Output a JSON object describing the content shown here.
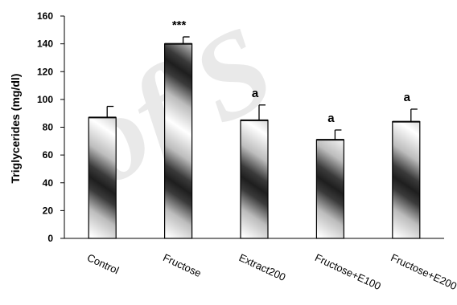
{
  "chart_data": {
    "type": "bar",
    "title": "",
    "xlabel": "",
    "ylabel": "Triglycerides (mg/dl)",
    "ylim": [
      0,
      160
    ],
    "yticks": [
      0,
      20,
      40,
      60,
      80,
      100,
      120,
      140,
      160
    ],
    "categories": [
      "Control",
      "Fructose",
      "Extract200",
      "Fructose+E100",
      "Fructose+E200"
    ],
    "values": [
      87,
      140,
      85,
      71,
      84
    ],
    "errors": [
      8,
      5,
      11,
      7,
      9
    ],
    "annotations": [
      "",
      "***",
      "a",
      "a",
      "a"
    ],
    "grid": false,
    "legend": "none",
    "bar_fill": "diagonal gradient bands, dark gray to white",
    "bar_color_dark": "#2a2a2a",
    "bar_color_light": "#ffffff"
  },
  "watermark": {
    "text": "of S"
  }
}
